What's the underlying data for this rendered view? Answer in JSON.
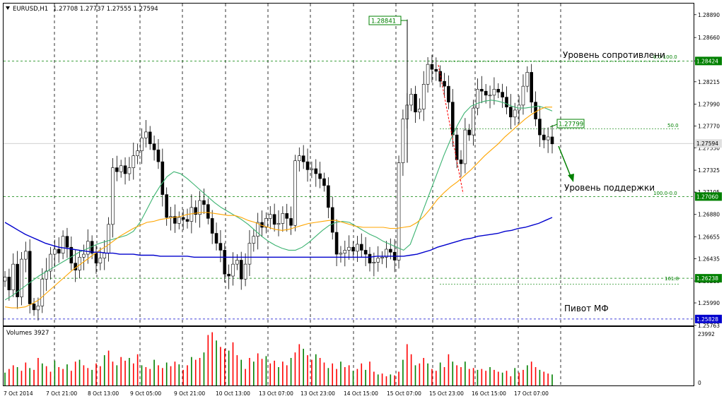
{
  "colors": {
    "background": "#ffffff",
    "grid": "#000000",
    "bull": "#008000",
    "bear": "#ff0000",
    "ma_fast": "#3cb371",
    "ma_mid": "#ffa500",
    "ma_slow": "#0000cd",
    "level_line": "#008000",
    "pivot_line": "#0000cd",
    "current_price_line": "#c0c0c0"
  },
  "header": {
    "symbol": "EURUSD,H1",
    "ohlc": "1.27708 1.27737 1.27555 1.27594",
    "arrow_icon": "triangle-down-icon"
  },
  "volume_header": {
    "text": "Volumes 3927"
  },
  "chart_data": {
    "type": "candlestick",
    "title": "EURUSD,H1",
    "subtitle": "1.27708 1.27737 1.27555 1.27594",
    "ylim": [
      1.25763,
      1.29002
    ],
    "y_ticks": [
      "1.28890",
      "1.28660",
      "1.28425",
      "1.28215",
      "1.27990",
      "1.27770",
      "1.27550",
      "1.27325",
      "1.27105",
      "1.26880",
      "1.26655",
      "1.26435",
      "1.26210",
      "1.25990",
      "1.25763"
    ],
    "x_ticks": [
      "7 Oct 2014",
      "7 Oct 21:00",
      "8 Oct 13:00",
      "9 Oct 05:00",
      "9 Oct 21:00",
      "10 Oct 13:00",
      "13 Oct 07:00",
      "13 Oct 23:00",
      "14 Oct 15:00",
      "15 Oct 07:00",
      "15 Oct 23:00",
      "16 Oct 15:00",
      "17 Oct 07:00"
    ],
    "close_series": [
      1.2625,
      1.2612,
      1.2638,
      1.2605,
      1.2643,
      1.2651,
      1.2598,
      1.2592,
      1.2596,
      1.2623,
      1.2631,
      1.2648,
      1.2653,
      1.2649,
      1.2666,
      1.2655,
      1.2639,
      1.2632,
      1.2645,
      1.2648,
      1.2661,
      1.2649,
      1.2639,
      1.2644,
      1.2649,
      1.2678,
      1.2735,
      1.2731,
      1.2737,
      1.2729,
      1.2735,
      1.2747,
      1.2752,
      1.2765,
      1.2771,
      1.2759,
      1.2753,
      1.2741,
      1.2708,
      1.2685,
      1.2686,
      1.2679,
      1.2685,
      1.2683,
      1.2681,
      1.2695,
      1.2688,
      1.2702,
      1.2698,
      1.2684,
      1.2669,
      1.2659,
      1.2652,
      1.2628,
      1.2626,
      1.2638,
      1.2642,
      1.2623,
      1.2638,
      1.2659,
      1.2666,
      1.268,
      1.2675,
      1.2684,
      1.2688,
      1.2678,
      1.2679,
      1.2689,
      1.2684,
      1.2677,
      1.2742,
      1.2747,
      1.2741,
      1.2733,
      1.2734,
      1.2729,
      1.2724,
      1.2717,
      1.2695,
      1.267,
      1.2648,
      1.2649,
      1.2652,
      1.2655,
      1.2651,
      1.2658,
      1.2652,
      1.2648,
      1.2639,
      1.264,
      1.2644,
      1.2645,
      1.2653,
      1.265,
      1.2642,
      1.274,
      1.2784,
      1.2798,
      1.2809,
      1.2791,
      1.2794,
      1.2819,
      1.2839,
      1.2834,
      1.2832,
      1.2822,
      1.2817,
      1.2801,
      1.2768,
      1.2743,
      1.2739,
      1.2773,
      1.2768,
      1.2795,
      1.2814,
      1.2812,
      1.2808,
      1.2808,
      1.2814,
      1.2811,
      1.2806,
      1.2796,
      1.2786,
      1.2793,
      1.2798,
      1.2817,
      1.2831,
      1.2801,
      1.2784,
      1.2768,
      1.2763,
      1.2766,
      1.2759
    ],
    "series": [
      {
        "name": "MA fast",
        "values": [
          1.2602,
          1.2606,
          1.2611,
          1.2616,
          1.2621,
          1.2626,
          1.263,
          1.2634,
          1.2638,
          1.2642,
          1.2646,
          1.265,
          1.2653,
          1.2656,
          1.2659,
          1.2661,
          1.2663,
          1.2665,
          1.2667,
          1.2671,
          1.268,
          1.2693,
          1.2706,
          1.2717,
          1.2726,
          1.2731,
          1.2729,
          1.2724,
          1.2718,
          1.2712,
          1.2706,
          1.27,
          1.2695,
          1.2691,
          1.2687,
          1.2683,
          1.2678,
          1.2672,
          1.2666,
          1.2661,
          1.2657,
          1.2654,
          1.2652,
          1.2652,
          1.2655,
          1.266,
          1.2666,
          1.2672,
          1.2677,
          1.268,
          1.2681,
          1.268,
          1.2676,
          1.2672,
          1.2668,
          1.2665,
          1.2661,
          1.2658,
          1.2655,
          1.2652,
          1.2658,
          1.2676,
          1.2694,
          1.2712,
          1.273,
          1.2748,
          1.2764,
          1.2778,
          1.279,
          1.2797,
          1.28,
          1.2802,
          1.2803,
          1.2802,
          1.28,
          1.2797,
          1.2795,
          1.2795,
          1.2796,
          1.2797,
          1.2795,
          1.2792
        ]
      },
      {
        "name": "MA mid",
        "values": [
          1.2595,
          1.2594,
          1.2594,
          1.2595,
          1.2598,
          1.2602,
          1.2608,
          1.2614,
          1.262,
          1.2626,
          1.2632,
          1.2637,
          1.2642,
          1.2647,
          1.2652,
          1.2656,
          1.2661,
          1.2666,
          1.267,
          1.2674,
          1.2677,
          1.268,
          1.2681,
          1.2683,
          1.2684,
          1.2685,
          1.2686,
          1.2688,
          1.2689,
          1.269,
          1.269,
          1.2689,
          1.2688,
          1.2687,
          1.2687,
          1.2685,
          1.2682,
          1.268,
          1.2677,
          1.2675,
          1.2673,
          1.2672,
          1.2673,
          1.2675,
          1.2677,
          1.2679,
          1.268,
          1.2681,
          1.2682,
          1.2682,
          1.268,
          1.2678,
          1.2676,
          1.2675,
          1.2675,
          1.2675,
          1.2675,
          1.2674,
          1.2674,
          1.2675,
          1.2676,
          1.268,
          1.2686,
          1.2694,
          1.2703,
          1.271,
          1.2716,
          1.2721,
          1.2727,
          1.2733,
          1.274,
          1.2747,
          1.2753,
          1.2759,
          1.2766,
          1.2772,
          1.2778,
          1.2784,
          1.2789,
          1.2793,
          1.2796,
          1.2796
        ]
      },
      {
        "name": "MA slow",
        "values": [
          1.268,
          1.2676,
          1.2672,
          1.2668,
          1.2665,
          1.2662,
          1.2659,
          1.2657,
          1.2655,
          1.2654,
          1.2653,
          1.2652,
          1.2651,
          1.265,
          1.265,
          1.2649,
          1.2649,
          1.2648,
          1.2648,
          1.2648,
          1.2647,
          1.2647,
          1.2647,
          1.2646,
          1.2646,
          1.2646,
          1.2646,
          1.2646,
          1.2645,
          1.2645,
          1.2645,
          1.2645,
          1.2645,
          1.2645,
          1.2645,
          1.2645,
          1.2645,
          1.2645,
          1.2645,
          1.2645,
          1.2645,
          1.2645,
          1.2645,
          1.2645,
          1.2645,
          1.2645,
          1.2645,
          1.2645,
          1.2645,
          1.2645,
          1.2645,
          1.2645,
          1.2645,
          1.2645,
          1.2645,
          1.2646,
          1.2646,
          1.2646,
          1.2646,
          1.2646,
          1.2647,
          1.2648,
          1.265,
          1.2652,
          1.2655,
          1.2657,
          1.2659,
          1.2661,
          1.2663,
          1.2664,
          1.2666,
          1.2667,
          1.2668,
          1.2669,
          1.2671,
          1.2672,
          1.2674,
          1.2675,
          1.2677,
          1.2679,
          1.2682,
          1.2685
        ]
      }
    ],
    "volume": [
      14,
      18,
      22,
      20,
      16,
      25,
      19,
      17,
      30,
      24,
      21,
      15,
      27,
      20,
      18,
      23,
      16,
      26,
      28,
      22,
      19,
      17,
      24,
      21,
      33,
      38,
      26,
      22,
      31,
      27,
      30,
      24,
      34,
      22,
      20,
      18,
      28,
      22,
      19,
      25,
      21,
      26,
      23,
      17,
      22,
      31,
      28,
      30,
      36,
      55,
      58,
      49,
      42,
      40,
      38,
      47,
      33,
      28,
      18,
      30,
      26,
      35,
      29,
      32,
      24,
      27,
      20,
      26,
      22,
      30,
      36,
      45,
      40,
      33,
      28,
      34,
      30,
      25,
      19,
      24,
      18,
      26,
      20,
      22,
      16,
      18,
      24,
      17,
      26,
      15,
      12,
      13,
      10,
      12,
      11,
      15,
      28,
      45,
      34,
      22,
      24,
      30,
      24,
      18,
      16,
      25,
      20,
      34,
      26,
      22,
      20,
      26,
      18,
      19,
      17,
      18,
      16,
      20,
      17,
      15,
      14,
      16,
      10,
      19,
      14,
      17,
      22,
      26,
      20,
      17,
      15,
      13,
      12
    ],
    "volume_ticks": [
      "23992",
      "0"
    ]
  },
  "price_labels": {
    "high_tag": "1.28841",
    "current_price": "1.27594",
    "resistance_price": "1.28424",
    "support_price": "1.27060",
    "fib_161_price": "1.26238",
    "pivot_price": "1.25828",
    "fib_50_price": "1.27799"
  },
  "fib_levels": {
    "top_label": "0.0-100.0",
    "mid_label": "50.0",
    "bottom_label": "100.0-0.0",
    "ext_label": "161.8"
  },
  "annotations": {
    "resistance": "Уровень сопротивлени",
    "support": "Уровень поддержки",
    "pivot": "Пивот МФ"
  }
}
